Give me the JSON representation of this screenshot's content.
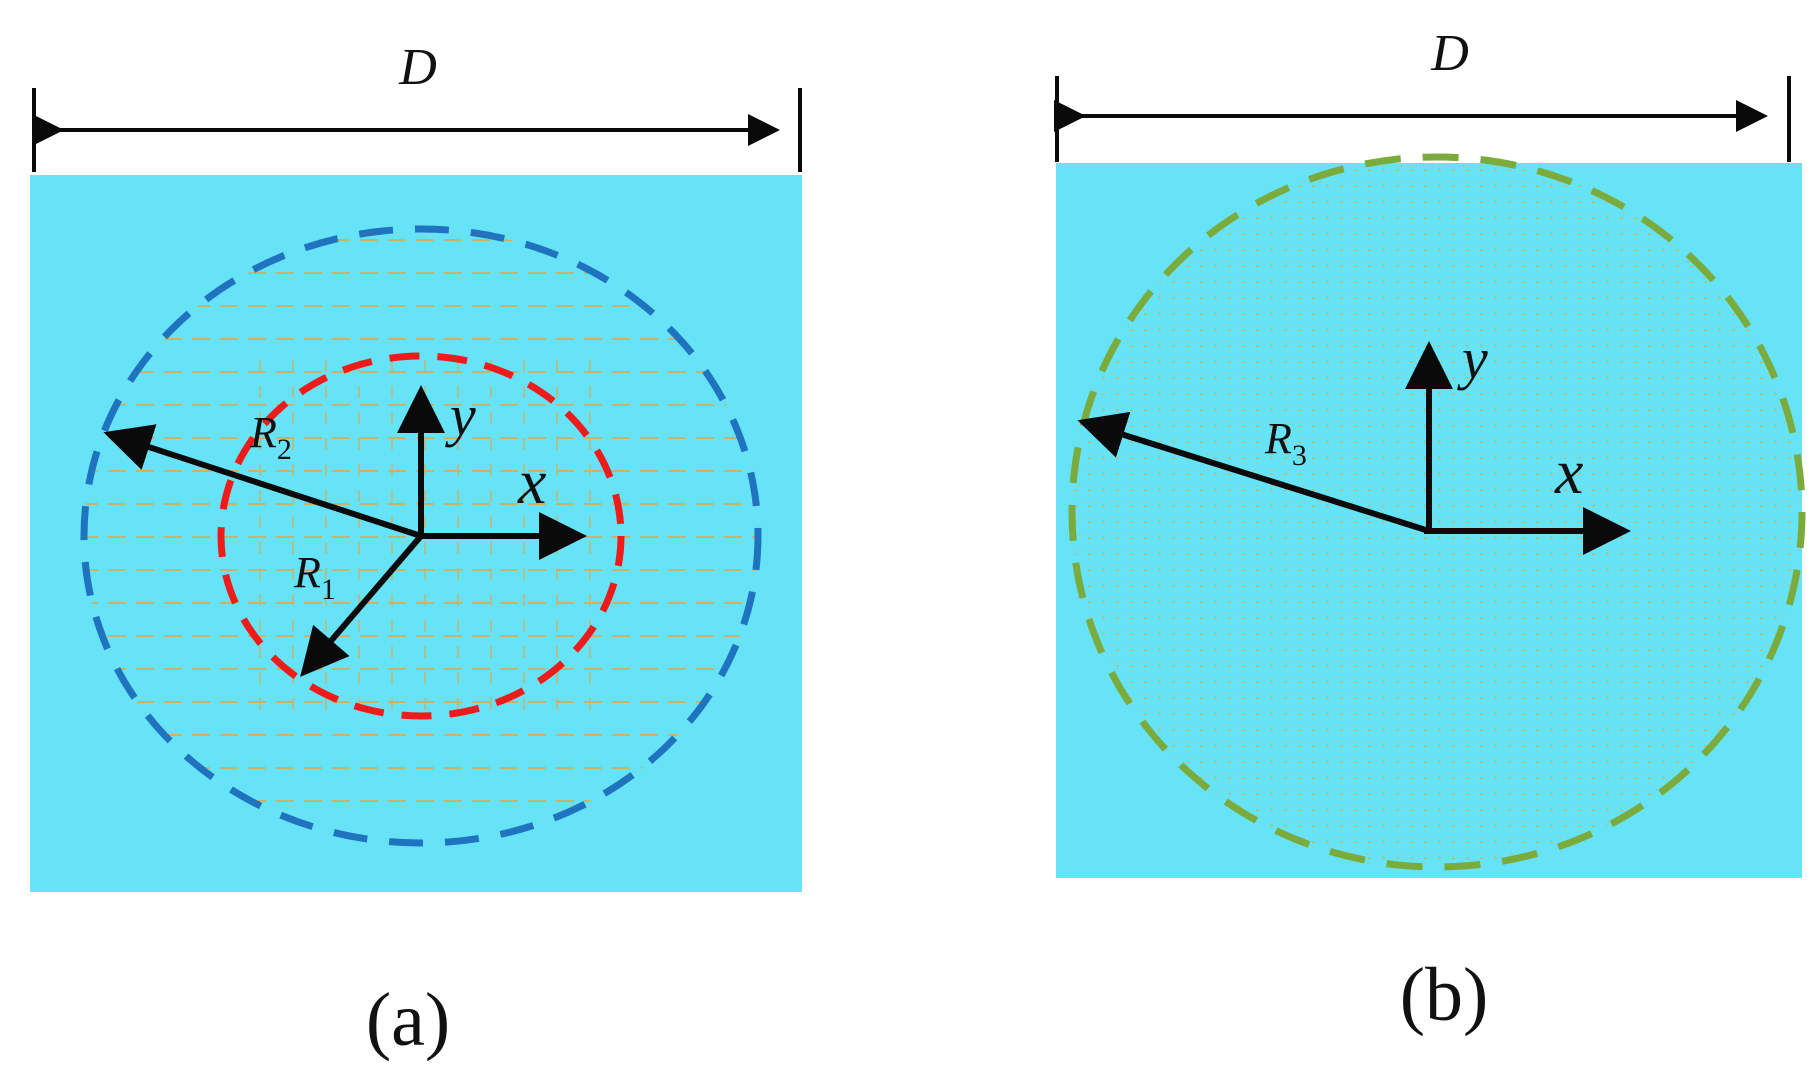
{
  "colors": {
    "background": "#ffffff",
    "plate": "#67e3f8",
    "grid_line": "#c9b36a",
    "outer_ring_a": "#1f73bf",
    "inner_ring_a": "#ee1b1b",
    "ring_b": "#7aab3c",
    "arrow": "#0a0a0a"
  },
  "panel_a": {
    "width_label": "D",
    "x_label": "x",
    "y_label": "y",
    "r1_label": "R",
    "r1_subscript": "1",
    "r2_label": "R",
    "r2_subscript": "2",
    "caption": "(a)"
  },
  "panel_b": {
    "width_label": "D",
    "x_label": "x",
    "y_label": "y",
    "r3_label": "R",
    "r3_subscript": "3",
    "caption": "(b)"
  }
}
